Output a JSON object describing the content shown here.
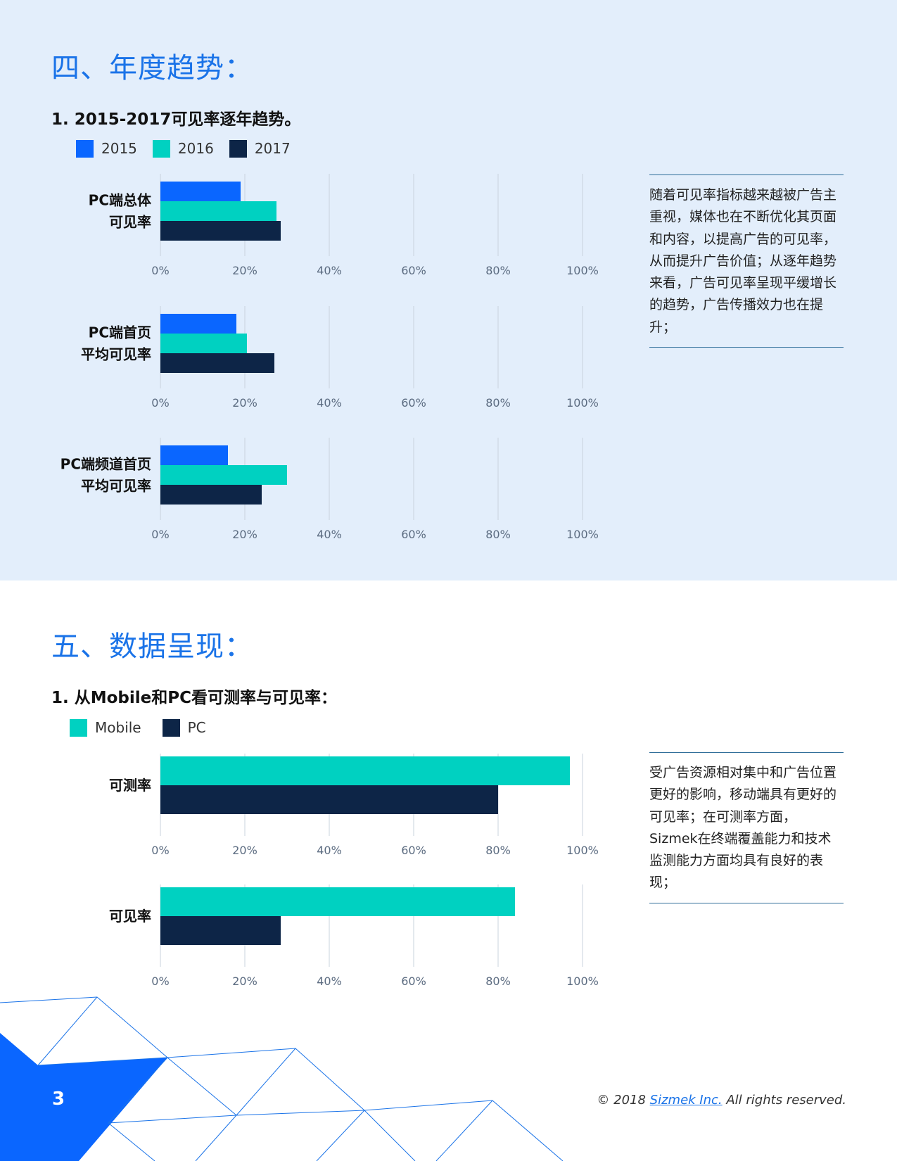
{
  "section4": {
    "title": "四、年度趋势：",
    "subtitle": "1.  2015-2017可见率逐年趋势。",
    "legend": [
      {
        "label": "2015",
        "color": "#0a66ff"
      },
      {
        "label": "2016",
        "color": "#00d1c1"
      },
      {
        "label": "2017",
        "color": "#0d2547"
      }
    ],
    "note": "随着可见率指标越来越被广告主重视，媒体也在不断优化其页面和内容，以提高广告的可见率，从而提升广告价值；从逐年趋势来看，广告可见率呈现平缓增长的趋势，广告传播效力也在提升；"
  },
  "section5": {
    "title": "五、数据呈现：",
    "subtitle": "1. 从Mobile和PC看可测率与可见率：",
    "legend": [
      {
        "label": "Mobile",
        "color": "#00d1c1"
      },
      {
        "label": "PC",
        "color": "#0d2547"
      }
    ],
    "note": "受广告资源相对集中和广告位置更好的影响，移动端具有更好的可见率；在可测率方面，Sizmek在终端覆盖能力和技术监测能力方面均具有良好的表现；"
  },
  "footer": {
    "page_number": "3",
    "copyright_prefix": "© 2018 ",
    "company": "Sizmek Inc.",
    "copyright_suffix": " All rights reserved."
  },
  "chart_data": [
    {
      "type": "bar",
      "orientation": "horizontal",
      "category_lines": [
        "PC端总体",
        "可见率"
      ],
      "series": [
        {
          "name": "2015",
          "values": [
            19
          ]
        },
        {
          "name": "2016",
          "values": [
            27.5
          ]
        },
        {
          "name": "2017",
          "values": [
            28.5
          ]
        }
      ],
      "xlim": [
        0,
        100
      ],
      "ticks": [
        "0%",
        "20%",
        "40%",
        "60%",
        "80%",
        "100%"
      ],
      "grid": true
    },
    {
      "type": "bar",
      "orientation": "horizontal",
      "category_lines": [
        "PC端首页",
        "平均可见率"
      ],
      "series": [
        {
          "name": "2015",
          "values": [
            18
          ]
        },
        {
          "name": "2016",
          "values": [
            20.5
          ]
        },
        {
          "name": "2017",
          "values": [
            27
          ]
        }
      ],
      "xlim": [
        0,
        100
      ],
      "ticks": [
        "0%",
        "20%",
        "40%",
        "60%",
        "80%",
        "100%"
      ],
      "grid": true
    },
    {
      "type": "bar",
      "orientation": "horizontal",
      "category_lines": [
        "PC端频道首页",
        "平均可见率"
      ],
      "series": [
        {
          "name": "2015",
          "values": [
            16
          ]
        },
        {
          "name": "2016",
          "values": [
            30
          ]
        },
        {
          "name": "2017",
          "values": [
            24
          ]
        }
      ],
      "xlim": [
        0,
        100
      ],
      "ticks": [
        "0%",
        "20%",
        "40%",
        "60%",
        "80%",
        "100%"
      ],
      "grid": true
    },
    {
      "type": "bar",
      "orientation": "horizontal",
      "category_lines": [
        "可测率"
      ],
      "series": [
        {
          "name": "Mobile",
          "values": [
            97
          ]
        },
        {
          "name": "PC",
          "values": [
            80
          ]
        }
      ],
      "xlim": [
        0,
        100
      ],
      "ticks": [
        "0%",
        "20%",
        "40%",
        "60%",
        "80%",
        "100%"
      ],
      "grid": true
    },
    {
      "type": "bar",
      "orientation": "horizontal",
      "category_lines": [
        "可见率"
      ],
      "series": [
        {
          "name": "Mobile",
          "values": [
            84
          ]
        },
        {
          "name": "PC",
          "values": [
            28.5
          ]
        }
      ],
      "xlim": [
        0,
        100
      ],
      "ticks": [
        "0%",
        "20%",
        "40%",
        "60%",
        "80%",
        "100%"
      ],
      "grid": true
    }
  ]
}
